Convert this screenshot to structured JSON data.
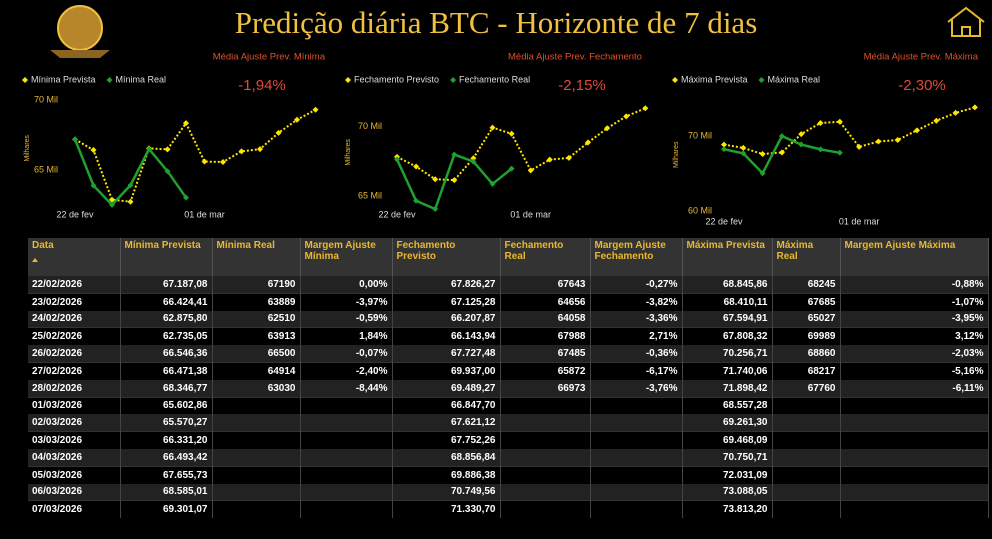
{
  "header": {
    "title": "Predição diária BTC - Horizonte de 7 dias"
  },
  "chart_data": [
    {
      "type": "line",
      "subtitle": "Média Ajuste Prev. Mínima",
      "annotation": "-1,94%",
      "y_label": "Milhares",
      "categories": [
        "22 de fev",
        null,
        null,
        null,
        null,
        null,
        null,
        "01 de mar",
        null,
        null,
        null,
        null,
        null,
        null
      ],
      "ylim": [
        62.5,
        70.6
      ],
      "yticks": [
        {
          "value": 65,
          "label": "65 Mil"
        },
        {
          "value": 70,
          "label": "70 Mil"
        }
      ],
      "series": [
        {
          "name": "Mínima Prevista",
          "color": "#ffe600",
          "values": [
            67.18708,
            66.42441,
            62.8758,
            62.73505,
            66.54636,
            66.47138,
            68.34677,
            65.60286,
            65.57027,
            66.3312,
            66.49342,
            67.65573,
            68.58501,
            69.30107
          ]
        },
        {
          "name": "Mínima Real",
          "color": "#1fa02f",
          "values": [
            67.19,
            63.889,
            62.51,
            63.913,
            66.5,
            64.914,
            63.03,
            null,
            null,
            null,
            null,
            null,
            null,
            null
          ]
        }
      ]
    },
    {
      "type": "line",
      "subtitle": "Média Ajuste Prev. Fechamento",
      "annotation": "-2,15%",
      "y_label": "Milhares",
      "categories": [
        "22 de fev",
        null,
        null,
        null,
        null,
        null,
        null,
        "01 de mar",
        null,
        null,
        null,
        null,
        null,
        null
      ],
      "ylim": [
        64.3,
        72
      ],
      "yticks": [
        {
          "value": 65,
          "label": "65 Mil"
        },
        {
          "value": 70,
          "label": "70 Mil"
        }
      ],
      "series": [
        {
          "name": "Fechamento Previsto",
          "color": "#ffe600",
          "values": [
            67.82627,
            67.12528,
            66.20787,
            66.14394,
            67.72748,
            69.937,
            69.48927,
            66.8477,
            67.62112,
            67.75226,
            68.85684,
            69.88638,
            70.74956,
            71.3307
          ]
        },
        {
          "name": "Fechamento Real",
          "color": "#1fa02f",
          "values": [
            67.643,
            64.656,
            64.058,
            67.988,
            67.485,
            65.872,
            66.973,
            null,
            null,
            null,
            null,
            null,
            null,
            null
          ]
        }
      ]
    },
    {
      "type": "line",
      "subtitle": "Média Ajuste Prev. Máxima",
      "annotation": "-2,30%",
      "y_label": "Milhares",
      "categories": [
        "22 de fev",
        null,
        null,
        null,
        null,
        null,
        null,
        "01 de mar",
        null,
        null,
        null,
        null,
        null,
        null
      ],
      "ylim": [
        60,
        75
      ],
      "yticks": [
        {
          "value": 60,
          "label": "60 Mil"
        },
        {
          "value": 70,
          "label": "70 Mil"
        }
      ],
      "series": [
        {
          "name": "Máxima Prevista",
          "color": "#ffe600",
          "values": [
            68.84586,
            68.41011,
            67.59491,
            67.80832,
            70.25671,
            71.74006,
            71.89842,
            68.55728,
            69.2613,
            69.46809,
            70.75071,
            72.03109,
            73.08805,
            73.8132
          ]
        },
        {
          "name": "Máxima Real",
          "color": "#1fa02f",
          "values": [
            68.245,
            67.685,
            65.027,
            69.989,
            68.86,
            68.217,
            67.76,
            null,
            null,
            null,
            null,
            null,
            null,
            null
          ]
        }
      ]
    }
  ],
  "table": {
    "columns": [
      "Data",
      "Mínima Prevista",
      "Mínima Real",
      "Margem Ajuste Mínima",
      "Fechamento Previsto",
      "Fechamento Real",
      "Margem Ajuste Fechamento",
      "Máxima Prevista",
      "Máxima Real",
      "Margem Ajuste Máxima"
    ],
    "rows": [
      [
        "22/02/2026",
        "67.187,08",
        "67190",
        "0,00%",
        "67.826,27",
        "67643",
        "-0,27%",
        "68.845,86",
        "68245",
        "-0,88%"
      ],
      [
        "23/02/2026",
        "66.424,41",
        "63889",
        "-3,97%",
        "67.125,28",
        "64656",
        "-3,82%",
        "68.410,11",
        "67685",
        "-1,07%"
      ],
      [
        "24/02/2026",
        "62.875,80",
        "62510",
        "-0,59%",
        "66.207,87",
        "64058",
        "-3,36%",
        "67.594,91",
        "65027",
        "-3,95%"
      ],
      [
        "25/02/2026",
        "62.735,05",
        "63913",
        "1,84%",
        "66.143,94",
        "67988",
        "2,71%",
        "67.808,32",
        "69989",
        "3,12%"
      ],
      [
        "26/02/2026",
        "66.546,36",
        "66500",
        "-0,07%",
        "67.727,48",
        "67485",
        "-0,36%",
        "70.256,71",
        "68860",
        "-2,03%"
      ],
      [
        "27/02/2026",
        "66.471,38",
        "64914",
        "-2,40%",
        "69.937,00",
        "65872",
        "-6,17%",
        "71.740,06",
        "68217",
        "-5,16%"
      ],
      [
        "28/02/2026",
        "68.346,77",
        "63030",
        "-8,44%",
        "69.489,27",
        "66973",
        "-3,76%",
        "71.898,42",
        "67760",
        "-6,11%"
      ],
      [
        "01/03/2026",
        "65.602,86",
        null,
        null,
        "66.847,70",
        null,
        null,
        "68.557,28",
        null,
        null
      ],
      [
        "02/03/2026",
        "65.570,27",
        null,
        null,
        "67.621,12",
        null,
        null,
        "69.261,30",
        null,
        null
      ],
      [
        "03/03/2026",
        "66.331,20",
        null,
        null,
        "67.752,26",
        null,
        null,
        "69.468,09",
        null,
        null
      ],
      [
        "04/03/2026",
        "66.493,42",
        null,
        null,
        "68.856,84",
        null,
        null,
        "70.750,71",
        null,
        null
      ],
      [
        "05/03/2026",
        "67.655,73",
        null,
        null,
        "69.886,38",
        null,
        null,
        "72.031,09",
        null,
        null
      ],
      [
        "06/03/2026",
        "68.585,01",
        null,
        null,
        "70.749,56",
        null,
        null,
        "73.088,05",
        null,
        null
      ],
      [
        "07/03/2026",
        "69.301,07",
        null,
        null,
        "71.330,70",
        null,
        null,
        "73.813,20",
        null,
        null
      ]
    ]
  }
}
